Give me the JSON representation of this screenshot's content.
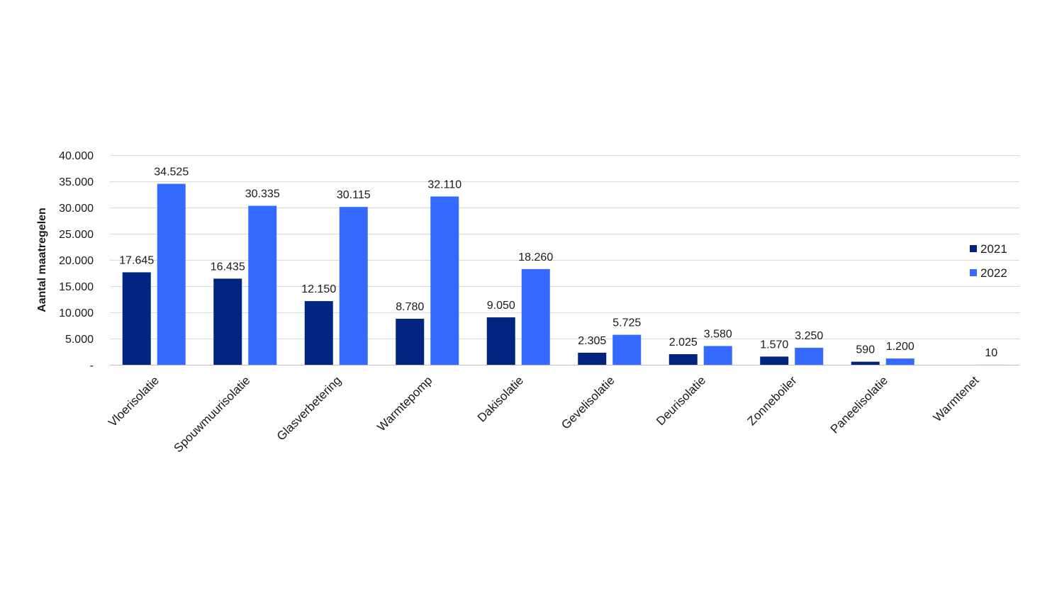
{
  "chart_data": {
    "type": "bar",
    "title": "",
    "xlabel": "",
    "ylabel": "Aantal maatregelen",
    "ylim": [
      0,
      40000
    ],
    "yticks": [
      0,
      5000,
      10000,
      15000,
      20000,
      25000,
      30000,
      35000,
      40000
    ],
    "ytick_labels": [
      "-",
      "5.000",
      "10.000",
      "15.000",
      "20.000",
      "25.000",
      "30.000",
      "35.000",
      "40.000"
    ],
    "grid": true,
    "legend_position": "right",
    "categories": [
      "Vloerisolatie",
      "Spouwmuurisolatie",
      "Glasverbetering",
      "Warmtepomp",
      "Dakisolatie",
      "Gevelisolatie",
      "Deurisolatie",
      "Zonneboiler",
      "Paneelisolatie",
      "Warmtenet"
    ],
    "series": [
      {
        "name": "2021",
        "color": "#002480",
        "values": [
          17645,
          16435,
          12150,
          8780,
          9050,
          2305,
          2025,
          1570,
          590,
          null
        ],
        "labels": [
          "17.645",
          "16.435",
          "12.150",
          "8.780",
          "9.050",
          "2.305",
          "2.025",
          "1.570",
          "590",
          ""
        ]
      },
      {
        "name": "2022",
        "color": "#346aff",
        "values": [
          34525,
          30335,
          30115,
          32110,
          18260,
          5725,
          3580,
          3250,
          1200,
          10
        ],
        "labels": [
          "34.525",
          "30.335",
          "30.115",
          "32.110",
          "18.260",
          "5.725",
          "3.580",
          "3.250",
          "1.200",
          "10"
        ]
      }
    ]
  }
}
